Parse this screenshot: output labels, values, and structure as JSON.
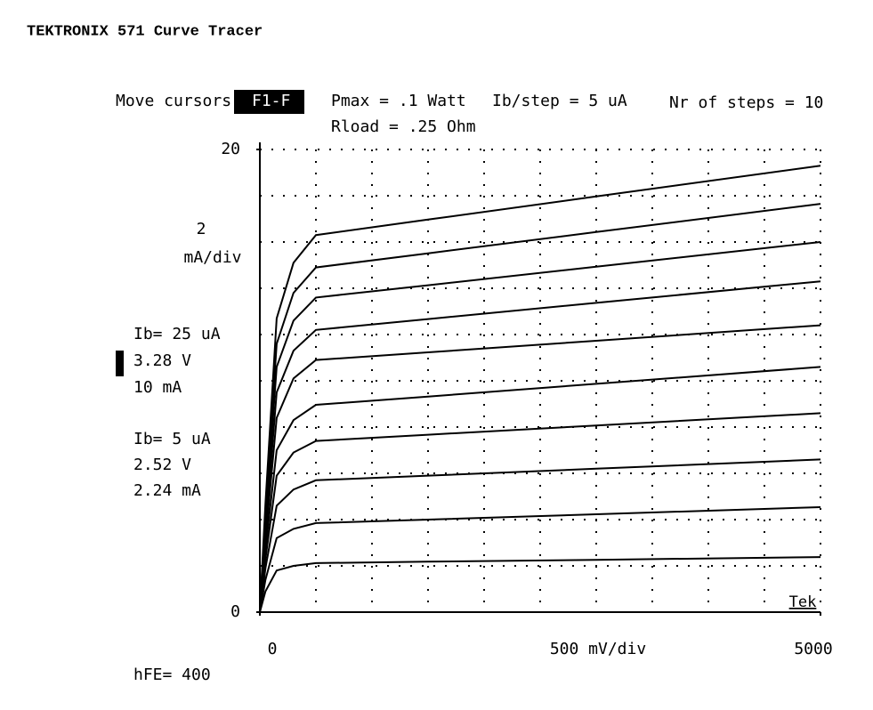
{
  "chart_data": {
    "type": "line",
    "title": "TEKTRONIX 571 Curve Tracer",
    "cursor_prompt": "Move cursors",
    "cursor_key": "F1-F",
    "settings": [
      "Pmax = .1 Watt",
      "Ib/step = 5 uA",
      "Nr of steps = 10"
    ],
    "load": "Rload = .25 Ohm",
    "y_scale": [
      "2",
      "mA/div"
    ],
    "x_scale": "500 mV/div",
    "cursor_a": [
      "Ib= 25 uA",
      "3.28 V",
      "10 mA"
    ],
    "cursor_b": [
      "Ib= 5 uA",
      "2.52 V",
      "2.24 mA"
    ],
    "gain": "hFE= 400",
    "brand": "Tek",
    "x": [
      0,
      50,
      150,
      300,
      500,
      1500,
      3000,
      5000
    ],
    "series": [
      {
        "color": "#000000",
        "values": [
          0,
          0.9,
          1.8,
          2.0,
          2.12,
          2.18,
          2.26,
          2.38
        ]
      },
      {
        "color": "#000000",
        "values": [
          0,
          1.4,
          3.2,
          3.6,
          3.85,
          4.0,
          4.23,
          4.54
        ]
      },
      {
        "color": "#000000",
        "values": [
          0,
          1.9,
          4.6,
          5.3,
          5.7,
          5.9,
          6.2,
          6.6
        ]
      },
      {
        "color": "#000000",
        "values": [
          0,
          2.3,
          5.9,
          6.9,
          7.4,
          7.67,
          8.07,
          8.6
        ]
      },
      {
        "color": "#000000",
        "values": [
          0,
          2.7,
          7.0,
          8.3,
          8.96,
          9.32,
          9.87,
          10.6
        ]
      },
      {
        "color": "#000000",
        "values": [
          0,
          3.1,
          8.4,
          10.1,
          10.9,
          11.23,
          11.73,
          12.4
        ]
      },
      {
        "color": "#000000",
        "values": [
          0,
          3.5,
          9.5,
          11.3,
          12.2,
          12.67,
          13.37,
          14.3
        ]
      },
      {
        "color": "#000000",
        "values": [
          0,
          3.9,
          10.6,
          12.6,
          13.6,
          14.13,
          14.93,
          16.0
        ]
      },
      {
        "color": "#000000",
        "values": [
          0,
          4.3,
          11.6,
          13.8,
          14.9,
          15.51,
          16.43,
          17.65
        ]
      },
      {
        "color": "#000000",
        "values": [
          0,
          4.7,
          12.7,
          15.1,
          16.3,
          16.97,
          17.97,
          19.3
        ]
      }
    ],
    "xlim": [
      0,
      5000
    ],
    "xticks": [
      0,
      5000
    ],
    "ylim": [
      0,
      20
    ],
    "yticks": [
      0,
      20
    ],
    "grid": true
  }
}
